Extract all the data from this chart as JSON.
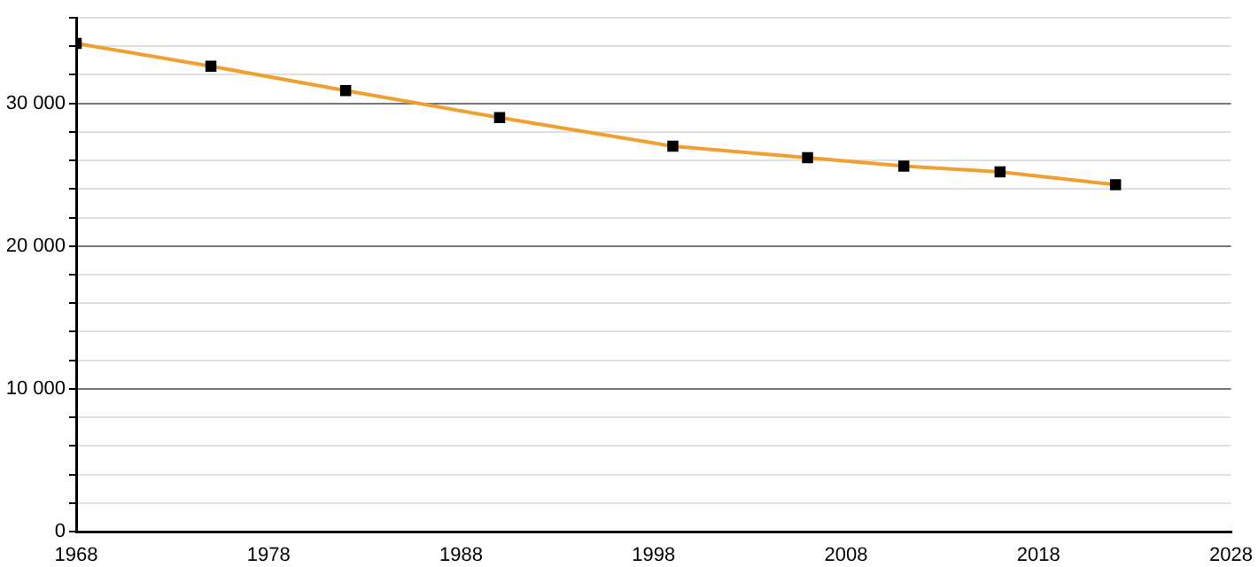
{
  "chart_data": {
    "type": "line",
    "x": [
      1968,
      1975,
      1982,
      1990,
      1999,
      2006,
      2011,
      2016,
      2022
    ],
    "series": [
      {
        "color": "#f0a030",
        "values": [
          34200,
          32600,
          30900,
          29000,
          27000,
          26200,
          25600,
          25200,
          24300
        ]
      }
    ],
    "xlim": [
      1968,
      2028
    ],
    "xticks": [
      1968,
      1978,
      1988,
      1998,
      2008,
      2018,
      2028
    ],
    "ylim": [
      0,
      36000
    ],
    "yticks": [
      0,
      {
        "value": 2000,
        "label": null
      },
      {
        "value": 4000,
        "label": null
      },
      {
        "value": 6000,
        "label": null
      },
      {
        "value": 8000,
        "label": null
      },
      {
        "value": 10000,
        "label": "10 000"
      },
      {
        "value": 12000,
        "label": null
      },
      {
        "value": 14000,
        "label": null
      },
      {
        "value": 16000,
        "label": null
      },
      {
        "value": 18000,
        "label": null
      },
      {
        "value": 20000,
        "label": "20 000"
      },
      {
        "value": 22000,
        "label": null
      },
      {
        "value": 24000,
        "label": null
      },
      {
        "value": 26000,
        "label": null
      },
      {
        "value": 28000,
        "label": null
      },
      {
        "value": 30000,
        "label": "30 000"
      },
      {
        "value": 32000,
        "label": null
      },
      {
        "value": 34000,
        "label": null
      },
      {
        "value": 36000,
        "label": null
      }
    ],
    "grid": "y",
    "marker": "square",
    "legend": false
  }
}
